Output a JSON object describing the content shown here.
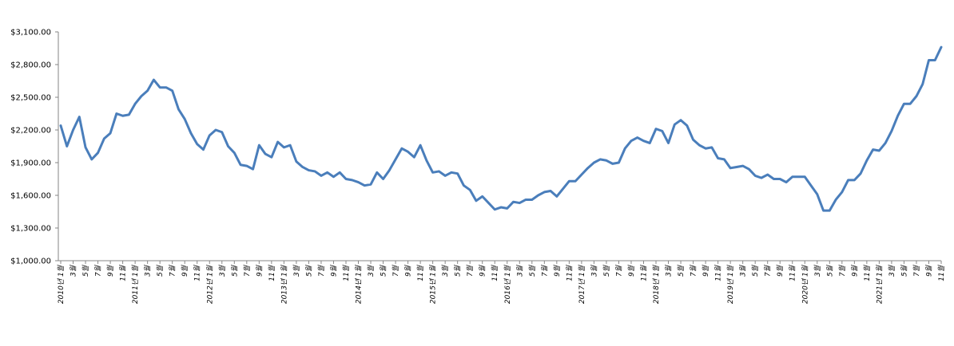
{
  "chart_data": {
    "type": "line",
    "title": "",
    "xlabel": "",
    "ylabel": "",
    "ylim": [
      1000,
      3100
    ],
    "grid": false,
    "legend": "none",
    "line_color": "#4a7ebb",
    "y_ticks": [
      "$1,000.00",
      "$1,300.00",
      "$1,600.00",
      "$1,900.00",
      "$2,200.00",
      "$2,500.00",
      "$2,800.00",
      "$3,100.00"
    ],
    "y_tick_values": [
      1000,
      1300,
      1600,
      1900,
      2200,
      2500,
      2800,
      3100
    ],
    "x_ticks": [
      "2010년 1월",
      "3월",
      "5월",
      "7월",
      "9월",
      "11월",
      "2011년 1월",
      "3월",
      "5월",
      "7월",
      "9월",
      "11월",
      "2012년 1월",
      "3월",
      "5월",
      "7월",
      "9월",
      "11월",
      "2013년 1월",
      "3월",
      "5월",
      "7월",
      "9월",
      "11월",
      "2014년 1월",
      "3월",
      "5월",
      "7월",
      "9월",
      "11월",
      "2015년 1월",
      "3월",
      "5월",
      "7월",
      "9월",
      "11월",
      "2016년 1월",
      "3월",
      "5월",
      "7월",
      "9월",
      "11월",
      "2017년 1월",
      "3월",
      "5월",
      "7월",
      "9월",
      "11월",
      "2018년 1월",
      "3월",
      "5월",
      "7월",
      "9월",
      "11월",
      "2019년 1월",
      "3월",
      "5월",
      "7월",
      "9월",
      "11월",
      "2020년 1월",
      "3월",
      "5월",
      "7월",
      "9월",
      "11월",
      "2021년 1월",
      "3월",
      "5월",
      "7월",
      "9월",
      "11월"
    ],
    "series": [
      {
        "values": [
          2240,
          2050,
          2200,
          2320,
          2040,
          1930,
          1990,
          2120,
          2170,
          2350,
          2330,
          2340,
          2440,
          2510,
          2560,
          2660,
          2590,
          2590,
          2560,
          2390,
          2300,
          2170,
          2070,
          2020,
          2150,
          2200,
          2180,
          2050,
          1990,
          1880,
          1870,
          1840,
          2060,
          1980,
          1950,
          2090,
          2040,
          2060,
          1910,
          1860,
          1830,
          1820,
          1780,
          1810,
          1770,
          1810,
          1750,
          1740,
          1720,
          1690,
          1700,
          1810,
          1750,
          1830,
          1930,
          2030,
          2000,
          1950,
          2060,
          1920,
          1810,
          1820,
          1780,
          1810,
          1800,
          1690,
          1650,
          1550,
          1590,
          1530,
          1470,
          1490,
          1480,
          1540,
          1530,
          1560,
          1560,
          1600,
          1630,
          1640,
          1590,
          1660,
          1730,
          1730,
          1790,
          1850,
          1900,
          1930,
          1920,
          1890,
          1900,
          2030,
          2100,
          2130,
          2100,
          2080,
          2210,
          2190,
          2080,
          2250,
          2290,
          2240,
          2110,
          2060,
          2030,
          2040,
          1940,
          1930,
          1850,
          1860,
          1870,
          1840,
          1780,
          1760,
          1790,
          1750,
          1750,
          1720,
          1770,
          1770,
          1770,
          1690,
          1610,
          1460,
          1460,
          1560,
          1630,
          1740,
          1740,
          1800,
          1920,
          2020,
          2010,
          2080,
          2190,
          2330,
          2440,
          2440,
          2510,
          2620,
          2840,
          2840,
          2960
        ]
      }
    ]
  }
}
